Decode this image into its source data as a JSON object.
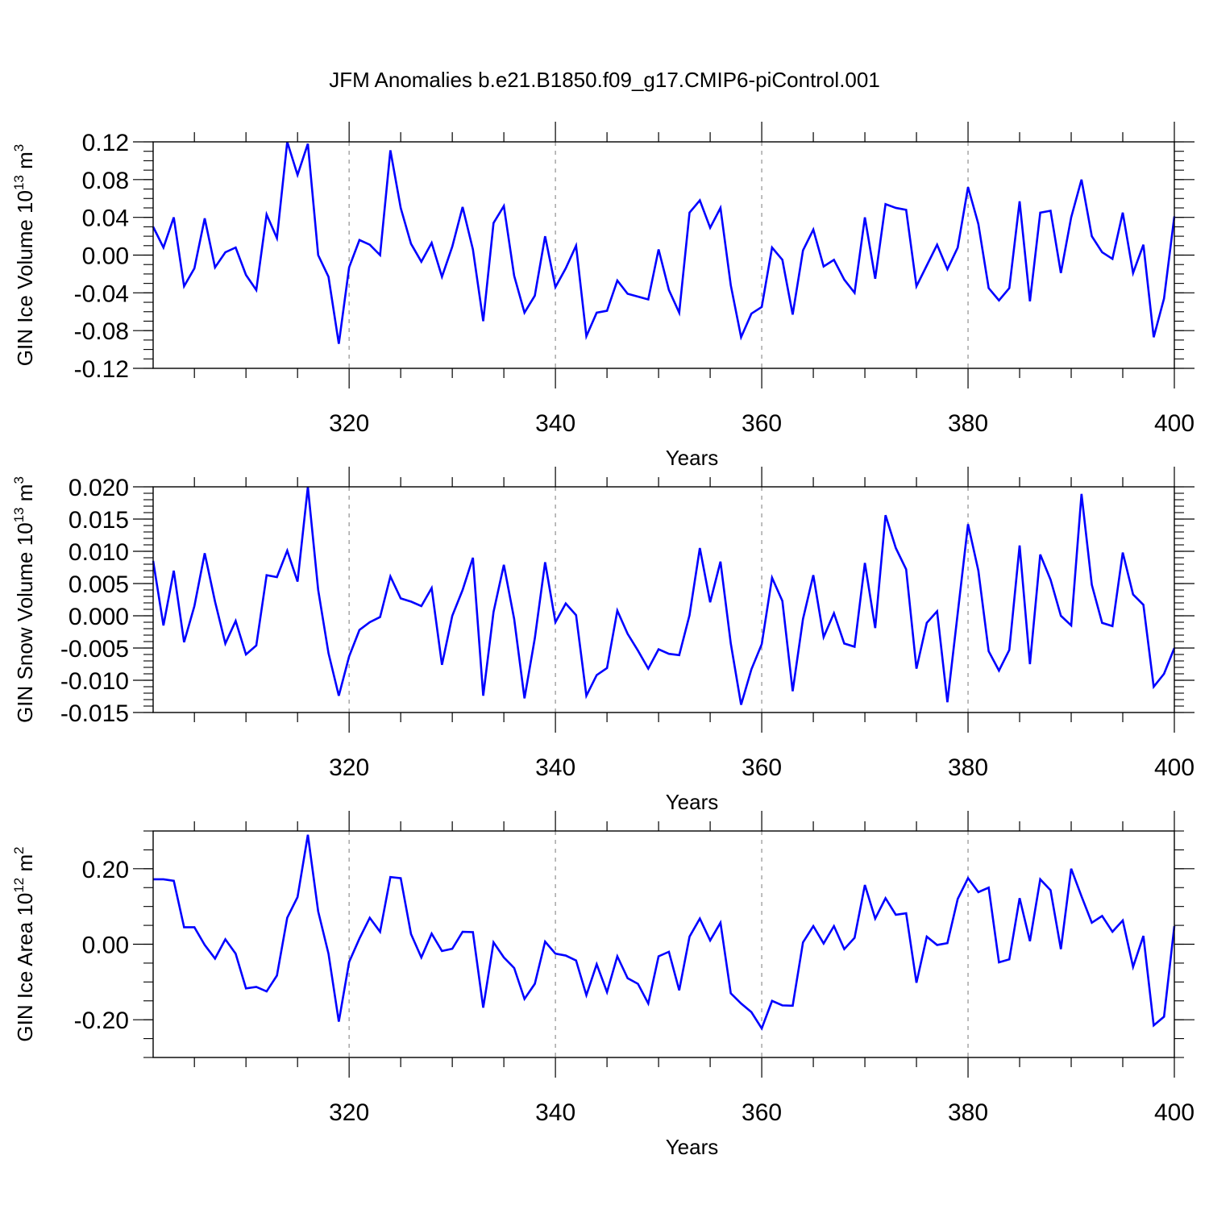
{
  "title": "JFM Anomalies b.e21.B1850.f09_g17.CMIP6-piControl.001",
  "chart_data": [
    {
      "type": "line",
      "title": "",
      "xlabel": "Years",
      "ylabel": "GIN Ice Volume 10",
      "ylabel_exp": "13",
      "ylabel_unit": " m",
      "ylabel_unit_exp": "3",
      "xlim": [
        301,
        400
      ],
      "ylim": [
        -0.12,
        0.12
      ],
      "xticks": [
        320,
        340,
        360,
        380,
        400
      ],
      "xtick_labels": [
        "320",
        "340",
        "360",
        "380",
        "400"
      ],
      "yticks": [
        -0.12,
        -0.08,
        -0.04,
        0.0,
        0.04,
        0.08,
        0.12
      ],
      "ytick_labels": [
        "-0.12",
        "-0.08",
        "-0.04",
        "0.00",
        "0.04",
        "0.08",
        "0.12"
      ],
      "yminor_step": 0.01,
      "grid": "x-dashed",
      "color": "#0000ff",
      "series": [
        {
          "x_start": 301,
          "values": [
            0.03,
            0.008,
            0.04,
            -0.033,
            -0.014,
            0.039,
            -0.013,
            0.003,
            0.008,
            -0.021,
            -0.037,
            0.043,
            0.018,
            0.12,
            0.085,
            0.118,
            0.0,
            -0.023,
            -0.094,
            -0.013,
            0.016,
            0.011,
            0.0,
            0.111,
            0.05,
            0.012,
            -0.007,
            0.013,
            -0.023,
            0.009,
            0.051,
            0.006,
            -0.07,
            0.034,
            0.052,
            -0.022,
            -0.061,
            -0.043,
            0.02,
            -0.034,
            -0.014,
            0.01,
            -0.086,
            -0.061,
            -0.059,
            -0.027,
            -0.041,
            -0.044,
            -0.047,
            0.006,
            -0.037,
            -0.061,
            0.045,
            0.058,
            0.029,
            0.05,
            -0.032,
            -0.087,
            -0.062,
            -0.055,
            0.008,
            -0.005,
            -0.063,
            0.005,
            0.027,
            -0.012,
            -0.005,
            -0.026,
            -0.04,
            0.04,
            -0.025,
            0.054,
            0.05,
            0.048,
            -0.033,
            -0.011,
            0.011,
            -0.015,
            0.008,
            0.072,
            0.033,
            -0.035,
            -0.048,
            -0.035,
            0.057,
            -0.049,
            0.045,
            0.047,
            -0.019,
            0.04,
            0.08,
            0.02,
            0.003,
            -0.004,
            0.045,
            -0.019,
            0.011,
            -0.087,
            -0.046,
            0.041
          ]
        }
      ]
    },
    {
      "type": "line",
      "title": "",
      "xlabel": "Years",
      "ylabel": "GIN Snow Volume 10",
      "ylabel_exp": "13",
      "ylabel_unit": " m",
      "ylabel_unit_exp": "3",
      "xlim": [
        301,
        400
      ],
      "ylim": [
        -0.015,
        0.02
      ],
      "xticks": [
        320,
        340,
        360,
        380,
        400
      ],
      "xtick_labels": [
        "320",
        "340",
        "360",
        "380",
        "400"
      ],
      "yticks": [
        -0.015,
        -0.01,
        -0.005,
        0.0,
        0.005,
        0.01,
        0.015,
        0.02
      ],
      "ytick_labels": [
        "-0.015",
        "-0.010",
        "-0.005",
        "0.000",
        "0.005",
        "0.010",
        "0.015",
        "0.020"
      ],
      "yminor_step": 0.001,
      "grid": "x-dashed",
      "color": "#0000ff",
      "series": [
        {
          "x_start": 301,
          "values": [
            0.0085,
            -0.0015,
            0.007,
            -0.0041,
            0.0015,
            0.0097,
            0.0022,
            -0.0043,
            -0.0008,
            -0.006,
            -0.0046,
            0.0063,
            0.006,
            0.0101,
            0.0053,
            0.02,
            0.004,
            -0.0058,
            -0.0124,
            -0.0063,
            -0.0022,
            -0.001,
            -0.0002,
            0.0061,
            0.0027,
            0.0022,
            0.0015,
            0.0043,
            -0.0076,
            0.0,
            0.004,
            0.009,
            -0.0124,
            0.0006,
            0.0079,
            -0.0005,
            -0.0128,
            -0.0035,
            0.0083,
            -0.001,
            0.0019,
            0.0001,
            -0.0124,
            -0.0092,
            -0.0081,
            0.0008,
            -0.0028,
            -0.0054,
            -0.0082,
            -0.0052,
            -0.0059,
            -0.0061,
            0.0001,
            0.0105,
            0.0021,
            0.0084,
            -0.0043,
            -0.0138,
            -0.0083,
            -0.0044,
            0.0059,
            0.0023,
            -0.0117,
            -0.0005,
            0.0063,
            -0.0033,
            0.0004,
            -0.0043,
            -0.0048,
            0.0082,
            -0.0019,
            0.0156,
            0.0105,
            0.0072,
            -0.0082,
            -0.0011,
            0.0007,
            -0.0134,
            0.0004,
            0.0142,
            0.007,
            -0.0055,
            -0.0085,
            -0.0053,
            0.0109,
            -0.0075,
            0.0095,
            0.0056,
            0.0,
            -0.0015,
            0.0189,
            0.0048,
            -0.0011,
            -0.0016,
            0.0098,
            0.0033,
            0.0017,
            -0.011,
            -0.009,
            -0.005
          ]
        }
      ]
    },
    {
      "type": "line",
      "title": "",
      "xlabel": "Years",
      "ylabel": "GIN Ice Area 10",
      "ylabel_exp": "12",
      "ylabel_unit": " m",
      "ylabel_unit_exp": "2",
      "xlim": [
        301,
        400
      ],
      "ylim": [
        -0.3,
        0.3
      ],
      "xticks": [
        320,
        340,
        360,
        380,
        400
      ],
      "xtick_labels": [
        "320",
        "340",
        "360",
        "380",
        "400"
      ],
      "yticks": [
        -0.2,
        0.0,
        0.2
      ],
      "ytick_labels": [
        "-0.20",
        "0.00",
        "0.20"
      ],
      "yminor_step": 0.05,
      "grid": "x-dashed",
      "color": "#0000ff",
      "series": [
        {
          "x_start": 301,
          "values": [
            0.172,
            0.172,
            0.168,
            0.045,
            0.045,
            -0.002,
            -0.038,
            0.013,
            -0.025,
            -0.117,
            -0.113,
            -0.125,
            -0.083,
            0.07,
            0.125,
            0.29,
            0.087,
            -0.025,
            -0.205,
            -0.047,
            0.015,
            0.07,
            0.033,
            0.178,
            0.175,
            0.027,
            -0.035,
            0.028,
            -0.018,
            -0.012,
            0.033,
            0.032,
            -0.168,
            0.005,
            -0.035,
            -0.063,
            -0.145,
            -0.105,
            0.007,
            -0.025,
            -0.03,
            -0.043,
            -0.135,
            -0.053,
            -0.127,
            -0.032,
            -0.09,
            -0.105,
            -0.157,
            -0.032,
            -0.02,
            -0.122,
            0.02,
            0.068,
            0.01,
            0.057,
            -0.13,
            -0.157,
            -0.18,
            -0.223,
            -0.15,
            -0.162,
            -0.163,
            0.005,
            0.048,
            0.002,
            0.048,
            -0.013,
            0.017,
            0.157,
            0.068,
            0.122,
            0.078,
            0.082,
            -0.102,
            0.02,
            -0.002,
            0.003,
            0.12,
            0.175,
            0.138,
            0.15,
            -0.048,
            -0.04,
            0.122,
            0.008,
            0.172,
            0.143,
            -0.013,
            0.2,
            0.127,
            0.057,
            0.075,
            0.033,
            0.063,
            -0.06,
            0.022,
            -0.215,
            -0.192,
            0.048
          ]
        }
      ]
    }
  ]
}
